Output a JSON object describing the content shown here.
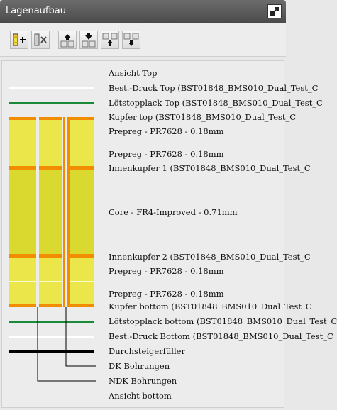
{
  "window": {
    "title": "Lagenaufbau"
  },
  "toolbar": {
    "buttons": [
      {
        "name": "add-layer-button",
        "tooltip": ""
      },
      {
        "name": "delete-layer-button",
        "tooltip": ""
      },
      {
        "name": "move-up-button",
        "tooltip": ""
      },
      {
        "name": "move-down-button",
        "tooltip": ""
      },
      {
        "name": "move-group-up-button",
        "tooltip": ""
      },
      {
        "name": "move-group-down-button",
        "tooltip": ""
      }
    ]
  },
  "colors": {
    "prepreg": "#ebe74a",
    "core": "#d9d92f",
    "copper": "#f28c00",
    "soldermask": "#1a8a3a",
    "silkscreen": "#ffffff",
    "filler": "#000000",
    "drill_outline": "#f28c00"
  },
  "layers": [
    {
      "label": "Ansicht Top"
    },
    {
      "label": "Best.-Druck Top (BST01848_BMS010_Dual_Test_C"
    },
    {
      "label": "Lötstopplack Top (BST01848_BMS010_Dual_Test_C"
    },
    {
      "label": "Kupfer top (BST01848_BMS010_Dual_Test_C"
    },
    {
      "label": "Prepreg - PR7628 - 0.18mm"
    },
    {
      "label": "Prepreg - PR7628 - 0.18mm"
    },
    {
      "label": "Innenkupfer 1 (BST01848_BMS010_Dual_Test_C"
    },
    {
      "label": "Core - FR4-Improved - 0.71mm"
    },
    {
      "label": "Innenkupfer 2 (BST01848_BMS010_Dual_Test_C"
    },
    {
      "label": "Prepreg - PR7628 - 0.18mm"
    },
    {
      "label": "Prepreg - PR7628 - 0.18mm"
    },
    {
      "label": "Kupfer bottom (BST01848_BMS010_Dual_Test_C"
    },
    {
      "label": "Lötstopplack bottom (BST01848_BMS010_Dual_Test_C"
    },
    {
      "label": "Best.-Druck Bottom (BST01848_BMS010_Dual_Test_C"
    },
    {
      "label": "Durchsteigerfüller"
    },
    {
      "label": "DK Bohrungen"
    },
    {
      "label": "NDK Bohrungen"
    },
    {
      "label": "Ansicht bottom"
    }
  ]
}
